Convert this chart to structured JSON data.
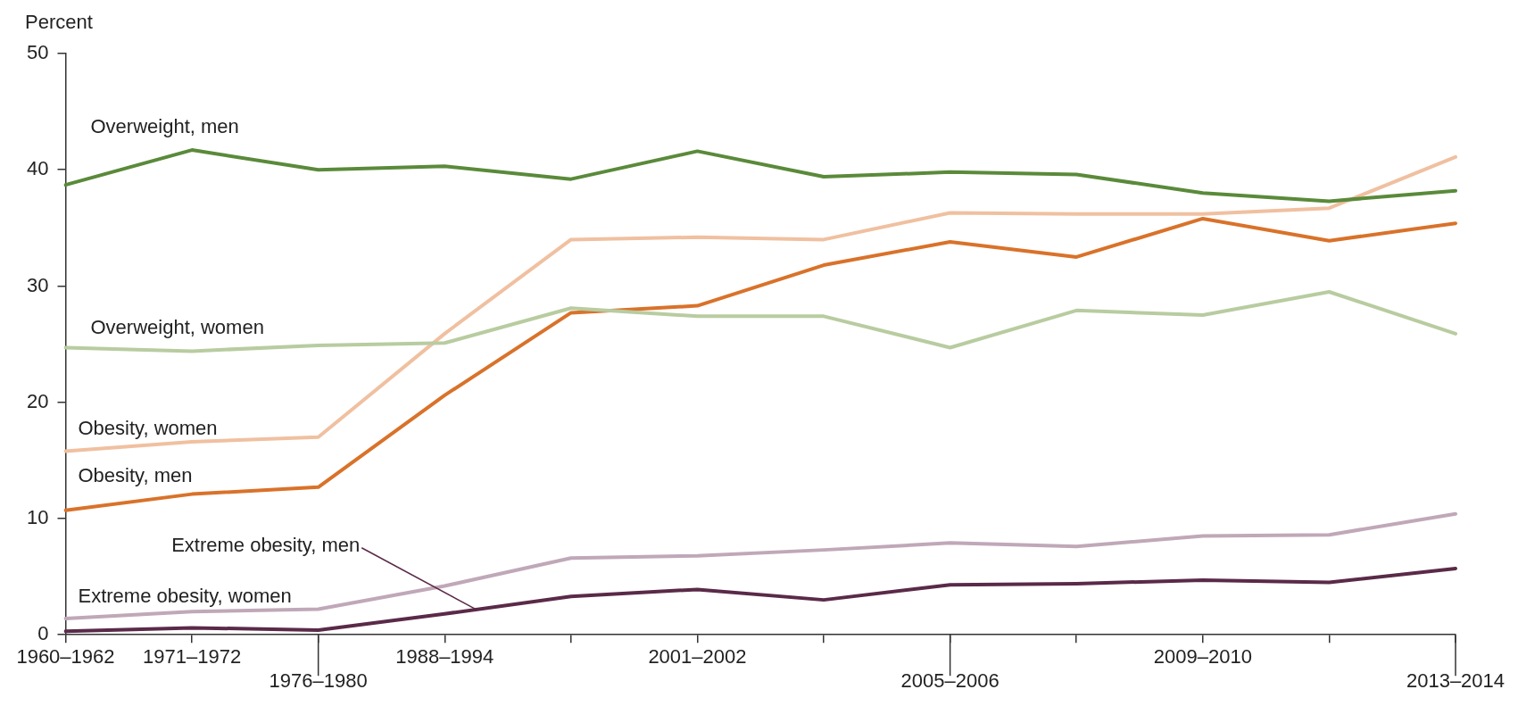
{
  "chart_data": {
    "type": "line",
    "ylabel": "Percent",
    "categories": [
      "1960–1962",
      "1971–1972",
      "1976–1980",
      "1988–1994",
      null,
      "2001–2002",
      null,
      "2005–2006",
      null,
      "2009–2010",
      null,
      "2013–2014"
    ],
    "ylim": [
      0,
      50
    ],
    "yticks": [
      0,
      10,
      20,
      30,
      40,
      50
    ],
    "legend": false,
    "marker": "none",
    "line_style": "solid",
    "series": [
      {
        "name": "Overweight, men",
        "color": "#5a8a3a",
        "values": [
          38.7,
          41.7,
          40.0,
          40.3,
          39.2,
          41.6,
          39.4,
          39.8,
          39.6,
          38.0,
          37.3,
          38.2
        ]
      },
      {
        "name": "Overweight, women",
        "color": "#b8cca0",
        "values": [
          24.7,
          24.4,
          24.9,
          25.1,
          28.1,
          27.4,
          27.4,
          24.7,
          27.9,
          27.5,
          29.5,
          25.9
        ]
      },
      {
        "name": "Obesity, women",
        "color": "#f0c0a0",
        "values": [
          15.8,
          16.6,
          17.0,
          25.9,
          34.0,
          34.2,
          34.0,
          36.3,
          36.2,
          36.2,
          36.7,
          41.1
        ]
      },
      {
        "name": "Obesity, men",
        "color": "#d9722a",
        "values": [
          10.7,
          12.1,
          12.7,
          20.6,
          27.7,
          28.3,
          31.8,
          33.8,
          32.5,
          35.8,
          33.9,
          35.4
        ]
      },
      {
        "name": "Extreme obesity, women",
        "color": "#c0a8b8",
        "values": [
          1.4,
          2.0,
          2.2,
          4.2,
          6.6,
          6.8,
          7.3,
          7.9,
          7.6,
          8.5,
          8.6,
          10.4
        ]
      },
      {
        "name": "Extreme obesity, men",
        "color": "#5a2a48",
        "values": [
          0.3,
          0.6,
          0.4,
          1.8,
          3.3,
          3.9,
          3.0,
          4.3,
          4.4,
          4.7,
          4.5,
          5.7
        ]
      }
    ]
  }
}
